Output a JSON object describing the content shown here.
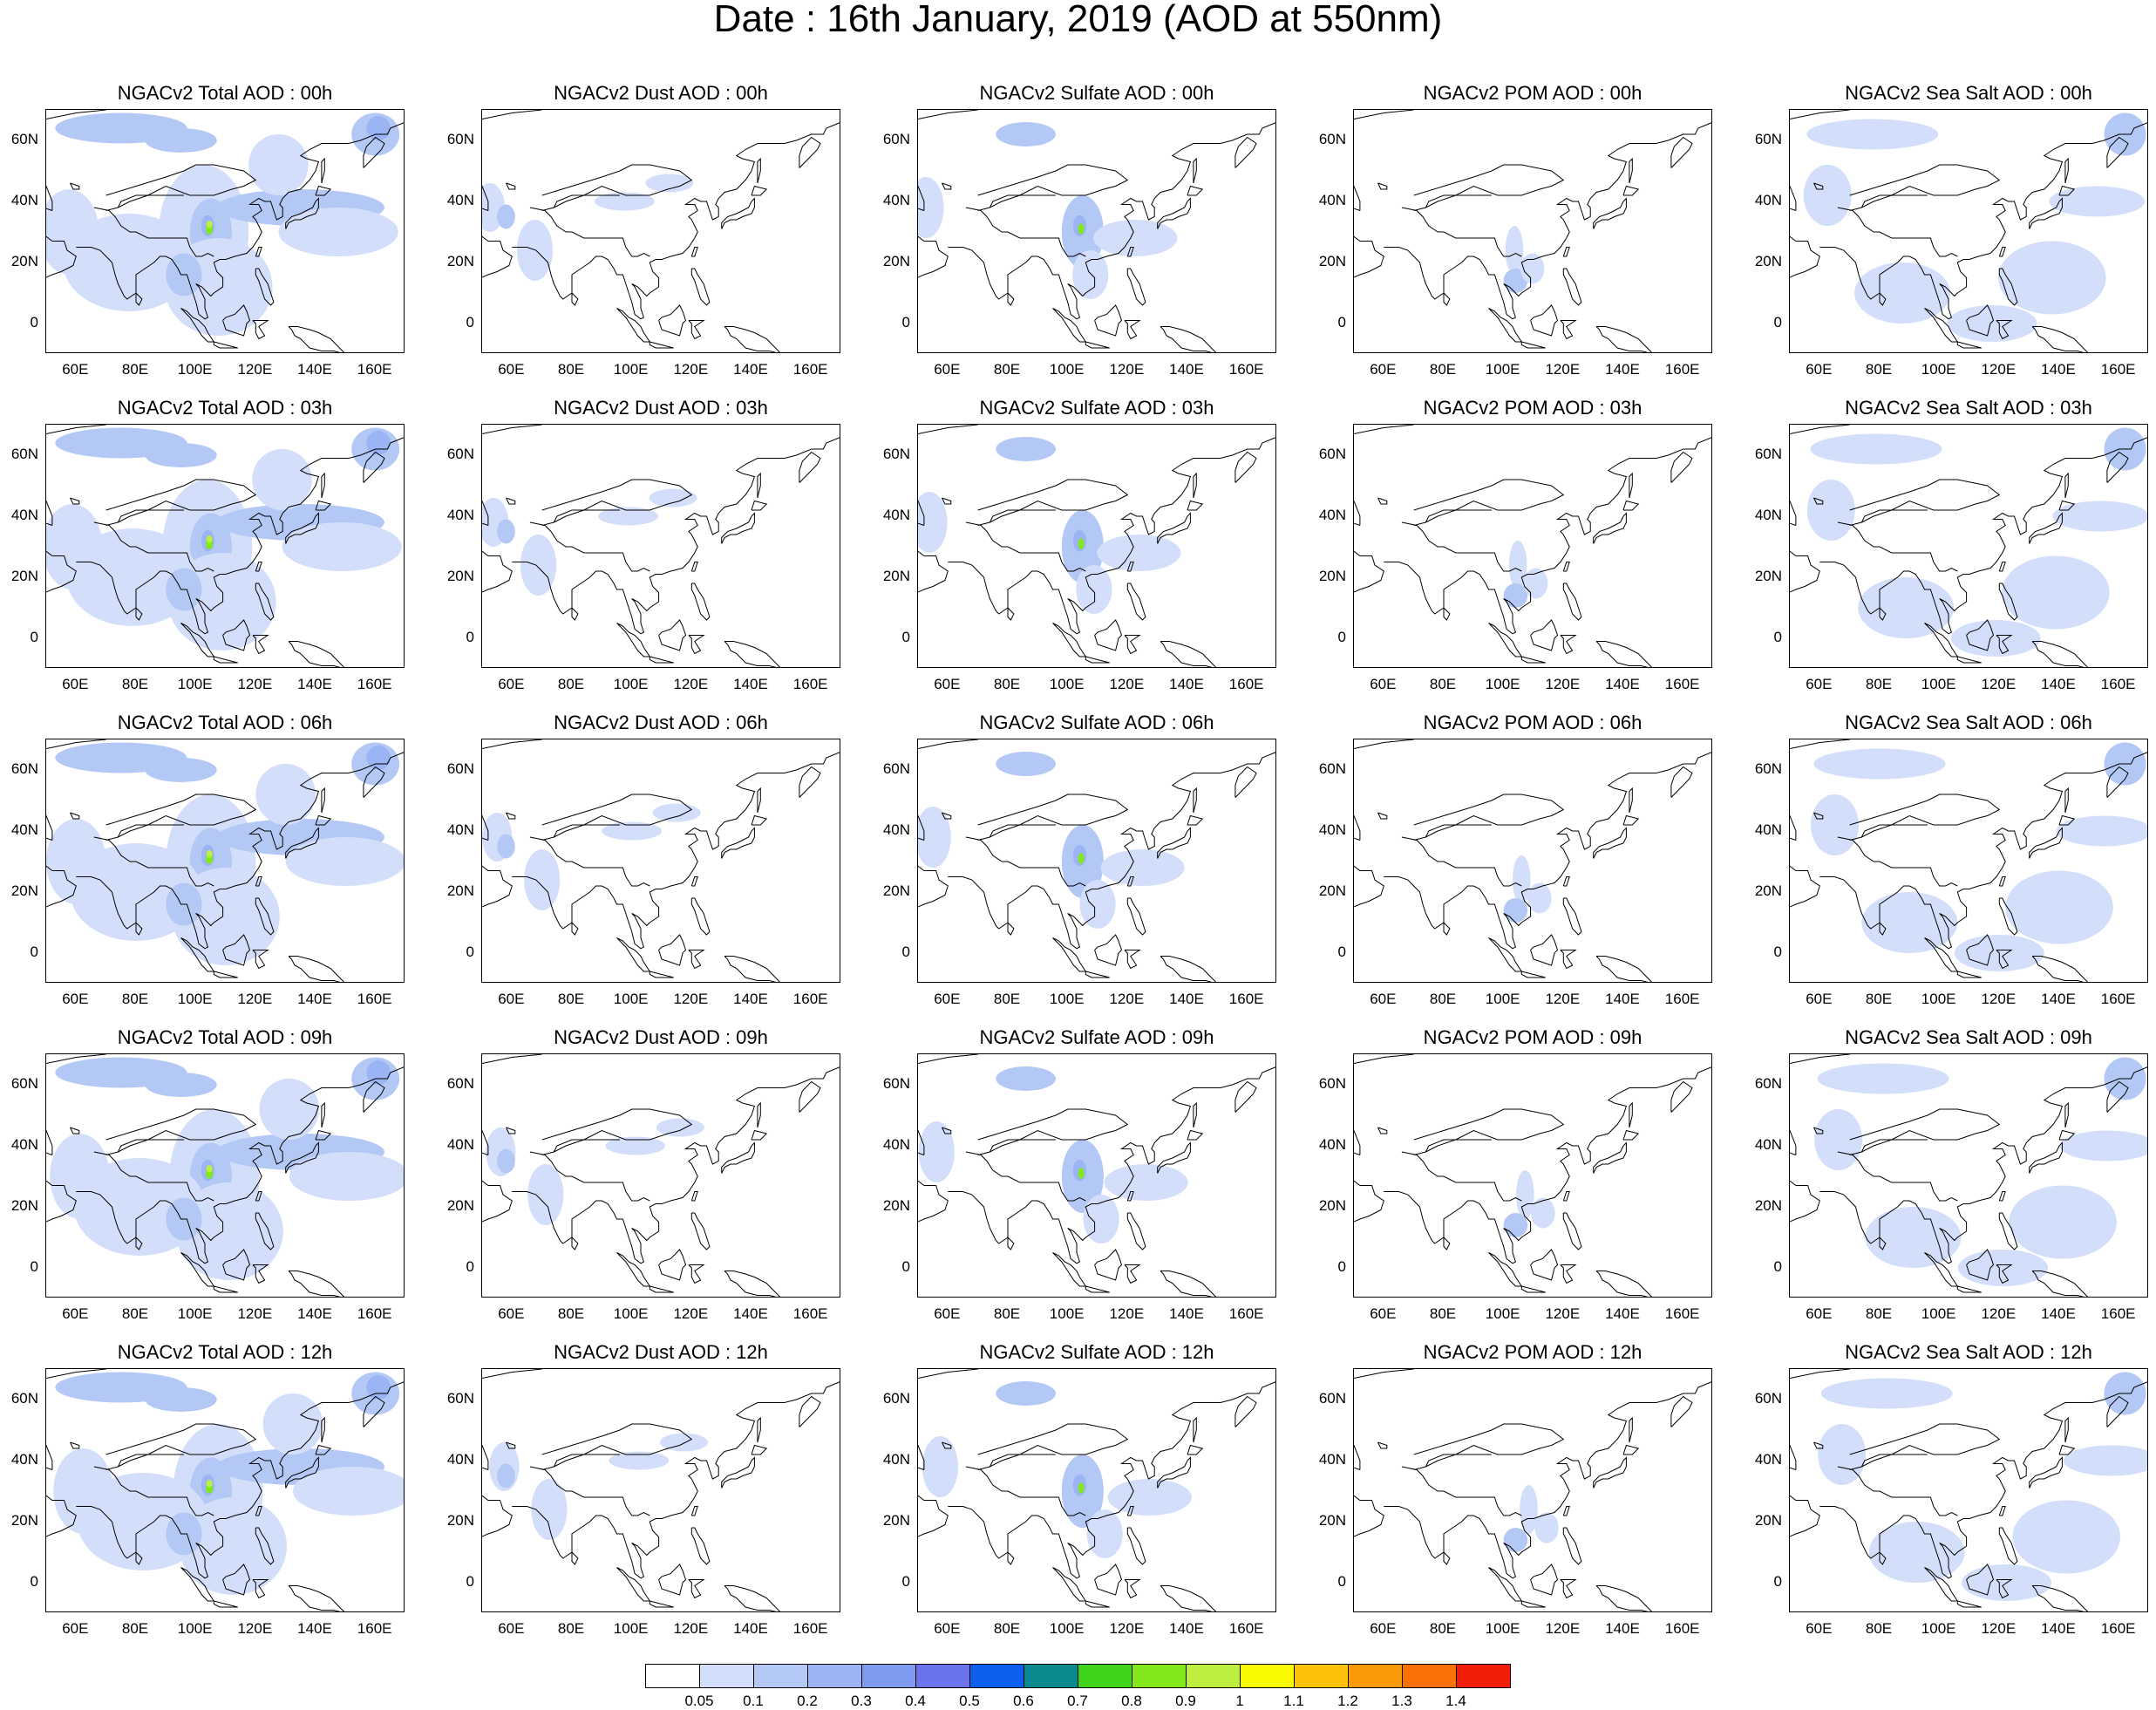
{
  "title": "Date : 16th January, 2019 (AOD at 550nm)",
  "colors": {
    "aod_scale": [
      "#ffffff",
      "#d3defa",
      "#b4c8f6",
      "#9ab4f4",
      "#7e9bf0",
      "#6b74ec",
      "#0d5ff0",
      "#0a8a8f",
      "#3fd31b",
      "#82e81b",
      "#bdee40",
      "#fafa00",
      "#fcc10a",
      "#fb9a07",
      "#fa7107",
      "#f41d0a"
    ],
    "coast": "#000000"
  },
  "panel_titles": [
    [
      "NGACv2 Total AOD : 00h",
      "NGACv2 Dust AOD : 00h",
      "NGACv2 Sulfate AOD : 00h",
      "NGACv2 POM AOD : 00h",
      "NGACv2 Sea Salt AOD : 00h"
    ],
    [
      "NGACv2 Total AOD : 03h",
      "NGACv2 Dust AOD : 03h",
      "NGACv2 Sulfate AOD : 03h",
      "NGACv2 POM AOD : 03h",
      "NGACv2 Sea Salt AOD : 03h"
    ],
    [
      "NGACv2 Total AOD : 06h",
      "NGACv2 Dust AOD : 06h",
      "NGACv2 Sulfate AOD : 06h",
      "NGACv2 POM AOD : 06h",
      "NGACv2 Sea Salt AOD : 06h"
    ],
    [
      "NGACv2 Total AOD : 09h",
      "NGACv2 Dust AOD : 09h",
      "NGACv2 Sulfate AOD : 09h",
      "NGACv2 POM AOD : 09h",
      "NGACv2 Sea Salt  AOD : 09h"
    ],
    [
      "NGACv2 Total AOD  : 12h",
      "NGACv2 Dust AOD : 12h",
      "NGACv2 Sulfate AOD : 12h",
      "NGACv2 POM  AOD : 12h",
      "NGACv2 Sea Salt  AOD : 12h"
    ]
  ],
  "y_ticks": [
    "60N",
    "40N",
    "20N",
    "0"
  ],
  "x_ticks": [
    "60E",
    "80E",
    "100E",
    "120E",
    "140E",
    "160E"
  ],
  "colorbar_labels": [
    "0.05",
    "0.1",
    "0.2",
    "0.3",
    "0.4",
    "0.5",
    "0.6",
    "0.7",
    "0.8",
    "0.9",
    "1",
    "1.1",
    "1.2",
    "1.3",
    "1.4"
  ],
  "map_extent": {
    "lon": [
      50,
      170
    ],
    "lat": [
      -10,
      70
    ]
  }
}
